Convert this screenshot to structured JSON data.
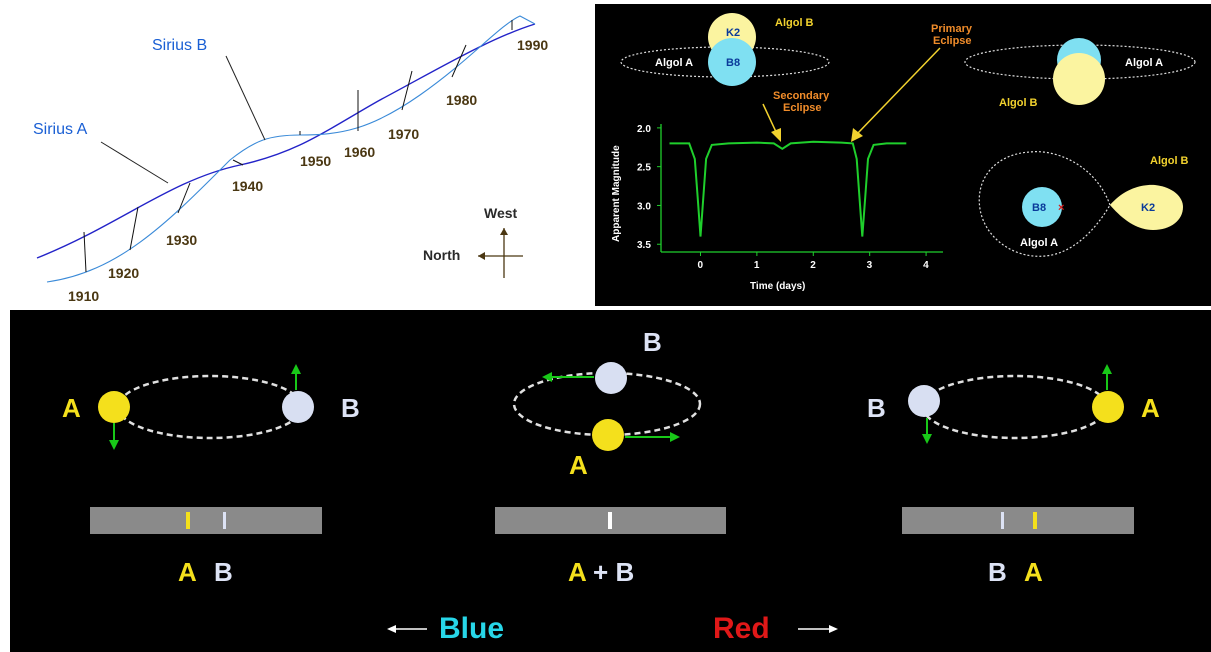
{
  "sirius": {
    "label_a": "Sirius A",
    "label_b": "Sirius B",
    "years": [
      "1910",
      "1920",
      "1930",
      "1940",
      "1950",
      "1960",
      "1970",
      "1980",
      "1990"
    ],
    "compass_west": "West",
    "compass_north": "North",
    "colors": {
      "sirius_a_path": "#2323c8",
      "sirius_b_path": "#3a8ad8",
      "labels": "#1a5fd4",
      "years": "#4a3712"
    }
  },
  "algol": {
    "top_star_upper": "K2",
    "top_star_lower": "B8",
    "algol_a": "Algol A",
    "algol_b": "Algol B",
    "primary_eclipse": "Primary\nEclipse",
    "secondary_eclipse": "Secondary\nEclipse",
    "right_algol_a": "Algol A",
    "right_algol_b": "Algol B",
    "roche_b8": "B8",
    "roche_k2": "K2",
    "roche_algol_a": "Algol A",
    "roche_algol_b": "Algol B",
    "colors": {
      "b8_star": "#7fe0f2",
      "k2_star": "#fbf4a0",
      "curve": "#1fcf2c",
      "text_yellow": "#f2d22e",
      "text_orange": "#f08c2a"
    },
    "chart_data": {
      "type": "line",
      "title": "",
      "xlabel": "Time (days)",
      "ylabel": "Apparent Magnitude",
      "x_ticks": [
        "0",
        "1",
        "2",
        "3",
        "4"
      ],
      "y_ticks": [
        "2.0",
        "2.5",
        "3.0",
        "3.5"
      ],
      "xlim": [
        -0.7,
        4.3
      ],
      "ylim": [
        3.6,
        1.95
      ],
      "y_inverted": true,
      "series": [
        {
          "x": [
            -0.55,
            -0.2,
            -0.1,
            -0.05,
            0.0,
            0.05,
            0.1,
            0.2,
            0.5,
            1.0,
            1.3,
            1.45,
            1.6,
            2.0,
            2.5,
            2.7,
            2.77,
            2.82,
            2.87,
            2.92,
            2.97,
            3.07,
            3.3,
            3.65
          ],
          "y": [
            2.2,
            2.2,
            2.4,
            2.9,
            3.4,
            2.9,
            2.4,
            2.22,
            2.2,
            2.19,
            2.2,
            2.27,
            2.2,
            2.18,
            2.19,
            2.2,
            2.4,
            2.9,
            3.4,
            2.9,
            2.4,
            2.22,
            2.2,
            2.2
          ]
        }
      ]
    }
  },
  "binary": {
    "left_a": "A",
    "left_b": "B",
    "left_caption_a": "A",
    "left_caption_b": "B",
    "mid_a": "A",
    "mid_b": "B",
    "mid_caption": "A + B",
    "right_a": "A",
    "right_b": "B",
    "right_caption_b": "B",
    "right_caption_a": "A",
    "blue_label": "Blue",
    "red_label": "Red",
    "colors": {
      "star_a": "#f4e01c",
      "star_b": "#d8dff2",
      "arrows": "#18c818",
      "spectrum": "#8a8a8a",
      "blue": "#27d6e8",
      "red": "#e01818"
    }
  }
}
